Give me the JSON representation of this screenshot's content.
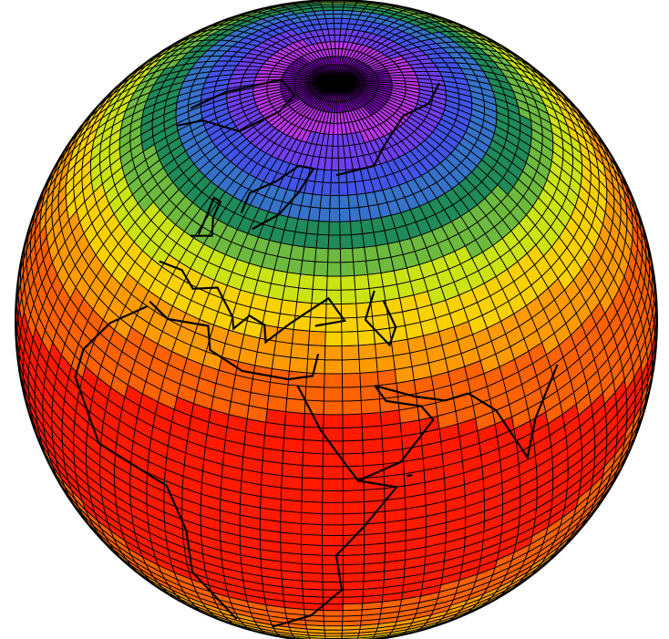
{
  "figure": {
    "type": "orthographic-globe",
    "projection": "orthographic",
    "view_center": {
      "lat": 42,
      "lon": 40
    },
    "graticule": {
      "lat_step_deg": 2.5,
      "lon_step_deg": 3.75
    },
    "grid_line_color": "#000000",
    "outline_color": "#000000",
    "coastline_color": "#000000",
    "colormap": [
      {
        "stop": 0.0,
        "color": "#000000"
      },
      {
        "stop": 0.08,
        "color": "#7a00b8"
      },
      {
        "stop": 0.18,
        "color": "#c43cf0"
      },
      {
        "stop": 0.28,
        "color": "#4b3ff0"
      },
      {
        "stop": 0.4,
        "color": "#3a6de0"
      },
      {
        "stop": 0.5,
        "color": "#1f8a5a"
      },
      {
        "stop": 0.6,
        "color": "#7cc43a"
      },
      {
        "stop": 0.7,
        "color": "#f2f200"
      },
      {
        "stop": 0.8,
        "color": "#ffb000"
      },
      {
        "stop": 0.9,
        "color": "#ff7000"
      },
      {
        "stop": 1.0,
        "color": "#ff1a00"
      }
    ]
  }
}
